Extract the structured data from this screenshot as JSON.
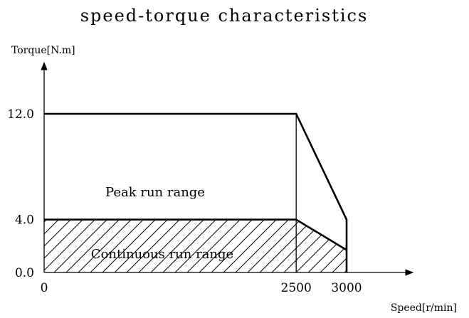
{
  "chart_data": {
    "type": "area",
    "title": "speed-torque characteristics",
    "xlabel": "Speed[r/min]",
    "ylabel": "Torque[N.m]",
    "xlim": [
      0,
      3000
    ],
    "ylim": [
      0,
      12
    ],
    "x_ticks": [
      {
        "value": 0,
        "label": "0"
      },
      {
        "value": 2500,
        "label": "2500"
      },
      {
        "value": 3000,
        "label": "3000"
      }
    ],
    "y_ticks": [
      {
        "value": 0,
        "label": "0.0"
      },
      {
        "value": 4,
        "label": "4.0"
      },
      {
        "value": 12,
        "label": "12.0"
      }
    ],
    "grid": false,
    "series": [
      {
        "name": "Peak run range",
        "points": [
          [
            0,
            12
          ],
          [
            2500,
            12
          ],
          [
            3000,
            4
          ],
          [
            3000,
            0
          ]
        ]
      },
      {
        "name": "Continuous run range",
        "fill": "hatched",
        "points": [
          [
            0,
            4
          ],
          [
            2500,
            4
          ],
          [
            3000,
            1.7
          ],
          [
            3000,
            0
          ]
        ]
      }
    ]
  }
}
